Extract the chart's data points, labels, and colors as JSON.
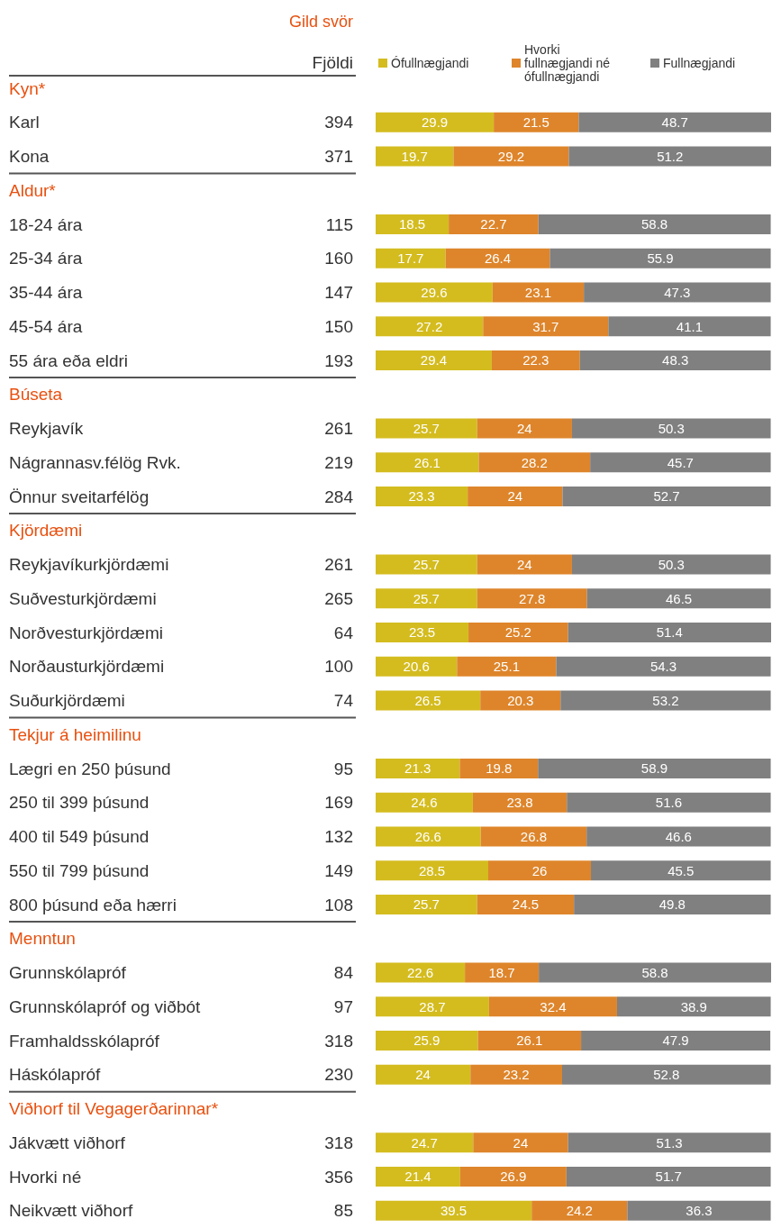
{
  "chart_data": {
    "type": "bar",
    "orientation": "horizontal",
    "stacked": true,
    "title": "Gild svör",
    "annotations": [
      "Fjöldi",
      "394",
      "371",
      "115",
      "160",
      "147",
      "150",
      "193",
      "261",
      "219",
      "284",
      "261",
      "265",
      "64",
      "100",
      "74",
      "95",
      "169",
      "132",
      "149",
      "108",
      "84",
      "97",
      "318",
      "230",
      "318",
      "356",
      "85"
    ],
    "categories": [
      "Kyn*",
      "Karl",
      "Kona",
      "Aldur*",
      "18-24 ára",
      "25-34 ára",
      "35-44 ára",
      "45-54 ára",
      "55 ára eða eldri",
      "Búseta",
      "Reykjavík",
      "Nágrannasv.félög Rvk.",
      "Önnur sveitarfélög",
      "Kjördæmi",
      "Reykjavíkurkjördæmi",
      "Suðvesturkjördæmi",
      "Norðvesturkjördæmi",
      "Norðausturkjördæmi",
      "Suðurkjördæmi",
      "Tekjur á heimilinu",
      "Lægri en 250 þúsund",
      "250 til 399 þúsund",
      "400 til 549 þúsund",
      "550 til 799 þúsund",
      "800 þúsund eða hærri",
      "Menntun",
      "Grunnskólapróf",
      "Grunnskólapróf og viðbót",
      "Framhaldsskólapróf",
      "Háskólapróf",
      "Viðhorf til Vegagerðarinnar*",
      "Jákvætt viðhorf",
      "Hvorki né",
      "Neikvætt viðhorf"
    ],
    "series": [
      {
        "name": "Ófullnægjandi",
        "color": "#d4bc1f",
        "values": [
          null,
          29.9,
          19.7,
          null,
          18.5,
          17.7,
          29.6,
          27.2,
          29.4,
          null,
          25.7,
          26.1,
          23.3,
          null,
          25.7,
          25.7,
          23.5,
          20.6,
          26.5,
          null,
          21.3,
          24.6,
          26.6,
          28.5,
          25.7,
          null,
          22.6,
          28.7,
          25.9,
          24,
          null,
          24.7,
          21.4,
          39.5
        ]
      },
      {
        "name": "Hvorki fullnægjandi né ófullnægjandi",
        "color": "#de852b",
        "values": [
          null,
          21.5,
          29.2,
          null,
          22.7,
          26.4,
          23.1,
          31.7,
          22.3,
          null,
          24,
          28.2,
          24,
          null,
          24,
          27.8,
          25.2,
          25.1,
          20.3,
          null,
          19.8,
          23.8,
          26.8,
          26,
          24.5,
          null,
          18.7,
          32.4,
          26.1,
          23.2,
          null,
          24,
          26.9,
          24.2
        ]
      },
      {
        "name": "Fullnægjandi",
        "color": "#808080",
        "values": [
          null,
          48.7,
          51.2,
          null,
          58.8,
          55.9,
          47.3,
          41.1,
          48.3,
          null,
          50.3,
          45.7,
          52.7,
          null,
          50.3,
          46.5,
          51.4,
          54.3,
          53.2,
          null,
          58.9,
          51.6,
          46.6,
          45.5,
          49.8,
          null,
          58.8,
          38.9,
          47.9,
          52.8,
          null,
          51.3,
          51.7,
          36.3
        ]
      }
    ],
    "data_labels": true,
    "legend": "top"
  }
}
